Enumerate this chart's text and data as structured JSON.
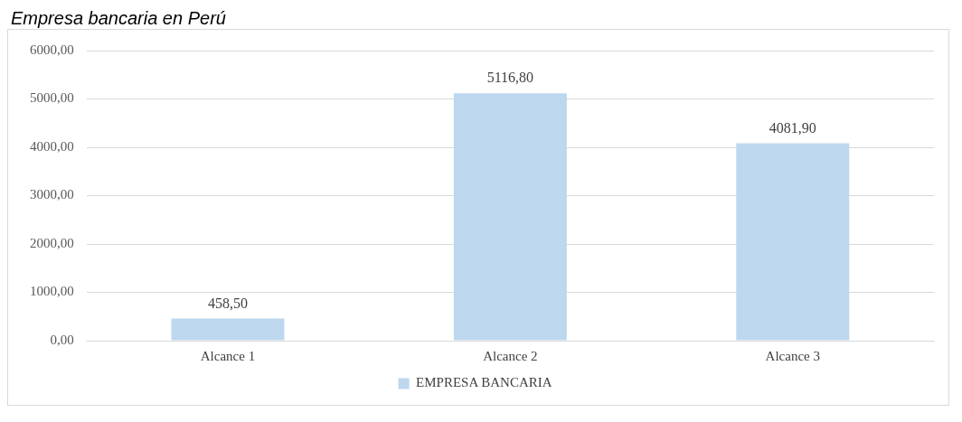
{
  "chart_data": {
    "type": "bar",
    "title": "Empresa bancaria en Perú",
    "categories": [
      "Alcance 1",
      "Alcance 2",
      "Alcance 3"
    ],
    "series": [
      {
        "name": "EMPRESA BANCARIA",
        "color": "#bdd7ee",
        "values": [
          458.5,
          5116.8,
          4081.9
        ],
        "value_labels": [
          "458,50",
          "5116,80",
          "4081,90"
        ]
      }
    ],
    "ylim": [
      0,
      6000
    ],
    "yticks": [
      {
        "value": 0,
        "label": "0,00"
      },
      {
        "value": 1000,
        "label": "1000,00"
      },
      {
        "value": 2000,
        "label": "2000,00"
      },
      {
        "value": 3000,
        "label": "3000,00"
      },
      {
        "value": 4000,
        "label": "4000,00"
      },
      {
        "value": 5000,
        "label": "5000,00"
      },
      {
        "value": 6000,
        "label": "6000,00"
      }
    ],
    "grid": "y",
    "legend": "bottom"
  }
}
